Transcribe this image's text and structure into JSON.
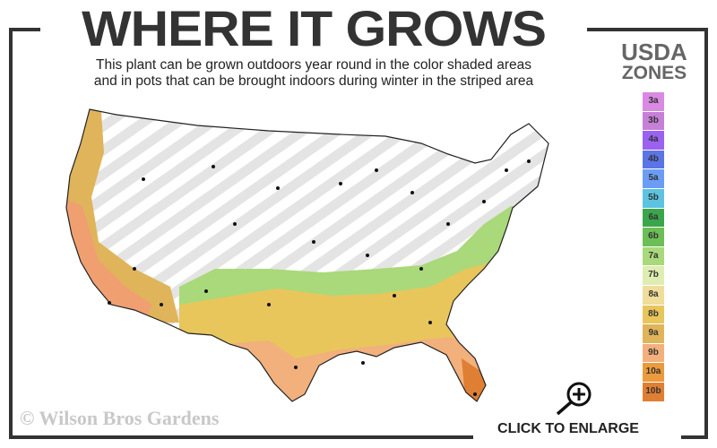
{
  "title": "WHERE IT GROWS",
  "subtitle_line1": "This plant can be grown outdoors year round in the color shaded areas",
  "subtitle_line2": "and in pots that can be brought indoors during winter in the striped area",
  "legend": {
    "title_line1": "USDA",
    "title_line2": "ZONES",
    "zones": [
      {
        "label": "3a",
        "color": "#d98ae2"
      },
      {
        "label": "3b",
        "color": "#c680d8"
      },
      {
        "label": "4a",
        "color": "#9b62f2"
      },
      {
        "label": "4b",
        "color": "#5b74e6"
      },
      {
        "label": "5a",
        "color": "#6b9df5"
      },
      {
        "label": "5b",
        "color": "#5cc3e0"
      },
      {
        "label": "6a",
        "color": "#3aa64c"
      },
      {
        "label": "6b",
        "color": "#6cbe56"
      },
      {
        "label": "7a",
        "color": "#a9d97a"
      },
      {
        "label": "7b",
        "color": "#dfedb2"
      },
      {
        "label": "8a",
        "color": "#efdd9a"
      },
      {
        "label": "8b",
        "color": "#e8c65c"
      },
      {
        "label": "9a",
        "color": "#dfb45a"
      },
      {
        "label": "9b",
        "color": "#f2b07c"
      },
      {
        "label": "10a",
        "color": "#eb9a3c"
      },
      {
        "label": "10b",
        "color": "#df7f33"
      }
    ]
  },
  "copyright": "© Wilson Bros Gardens",
  "enlarge_label": "CLICK TO ENLARGE",
  "icons": {
    "enlarge": "zoom-in-magnifier-icon"
  }
}
